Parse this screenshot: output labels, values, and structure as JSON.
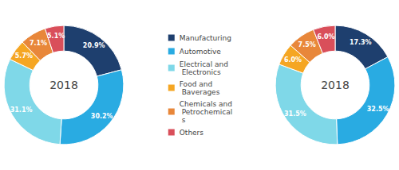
{
  "chart_data": [
    {
      "type": "pie",
      "annotations": [
        "2018"
      ],
      "categories": [
        "Manufacturing",
        "Automotive",
        "Electrical and\n Electronics",
        "Food and\n Baverages",
        "Chemicals and\n Petrochemical\n s",
        "Others"
      ],
      "values": [
        20.9,
        30.2,
        31.1,
        5.7,
        7.1,
        5.1
      ],
      "value_labels": [
        "20.9%",
        "30.2%",
        "31.1%",
        "5.7%",
        "7.1%",
        "5.1%"
      ],
      "colors": [
        "#1e3f6e",
        "#29abe2",
        "#7fd8e8",
        "#f5a623",
        "#e8873a",
        "#d94f5a"
      ],
      "data_labels": true,
      "legend": "center"
    },
    {
      "type": "pie",
      "annotations": [
        "2018"
      ],
      "categories": [
        "Manufacturing",
        "Automotive",
        "Electrical and\n Electronics",
        "Food and\n Baverages",
        "Chemicals and\n Petrochemical\n s",
        "Others"
      ],
      "values": [
        17.3,
        32.5,
        31.5,
        6.0,
        7.5,
        6.0
      ],
      "value_labels": [
        "17.3%",
        "32.5%",
        "31.5%",
        "6.0%",
        "7.5%",
        "6.0%"
      ],
      "colors": [
        "#1e3f6e",
        "#29abe2",
        "#7fd8e8",
        "#f5a623",
        "#e8873a",
        "#d94f5a"
      ],
      "data_labels": true,
      "legend": "center"
    }
  ]
}
